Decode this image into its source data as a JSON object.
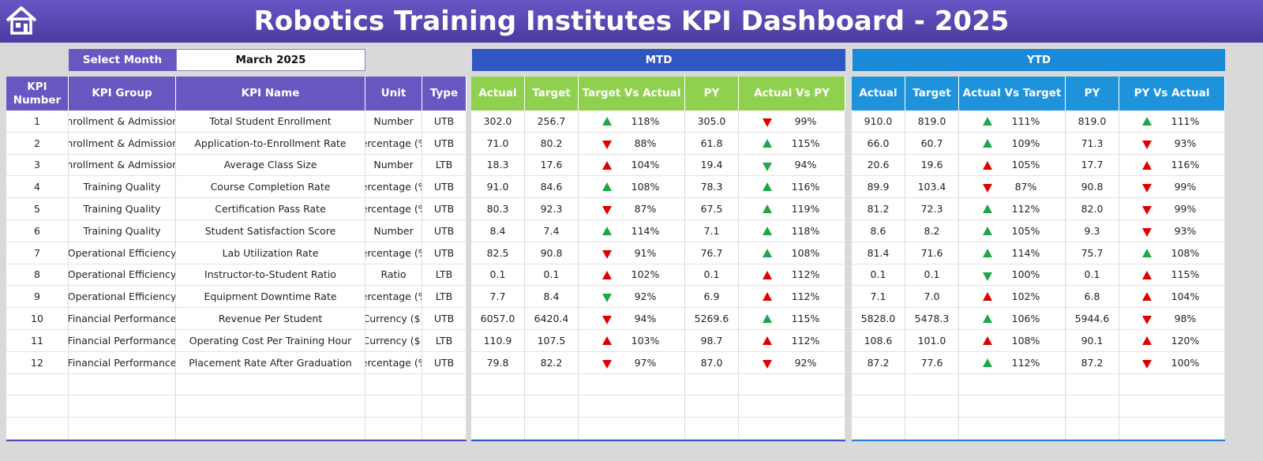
{
  "header": {
    "title": "Robotics Training Institutes KPI Dashboard - 2025"
  },
  "controls": {
    "select_month_label": "Select Month",
    "month": "March 2025",
    "mtd_label": "MTD",
    "ytd_label": "YTD"
  },
  "kpi_table": {
    "headers": [
      "KPI Number",
      "KPI Group",
      "KPI Name",
      "Unit",
      "Type"
    ],
    "rows": [
      [
        "1",
        "Enrollment & Admissions",
        "Total Student Enrollment",
        "Number",
        "UTB"
      ],
      [
        "2",
        "Enrollment & Admissions",
        "Application-to-Enrollment Rate",
        "Percentage (%)",
        "UTB"
      ],
      [
        "3",
        "Enrollment & Admissions",
        "Average Class Size",
        "Number",
        "LTB"
      ],
      [
        "4",
        "Training Quality",
        "Course Completion Rate",
        "Percentage (%)",
        "UTB"
      ],
      [
        "5",
        "Training Quality",
        "Certification Pass Rate",
        "Percentage (%)",
        "UTB"
      ],
      [
        "6",
        "Training Quality",
        "Student Satisfaction Score",
        "Number",
        "UTB"
      ],
      [
        "7",
        "Operational Efficiency",
        "Lab Utilization Rate",
        "Percentage (%)",
        "UTB"
      ],
      [
        "8",
        "Operational Efficiency",
        "Instructor-to-Student Ratio",
        "Ratio",
        "LTB"
      ],
      [
        "9",
        "Operational Efficiency",
        "Equipment Downtime Rate",
        "Percentage (%)",
        "LTB"
      ],
      [
        "10",
        "Financial Performance",
        "Revenue Per Student",
        "Currency ($)",
        "UTB"
      ],
      [
        "11",
        "Financial Performance",
        "Operating Cost Per Training Hour",
        "Currency ($)",
        "LTB"
      ],
      [
        "12",
        "Financial Performance",
        "Placement Rate After Graduation",
        "Percentage (%)",
        "UTB"
      ]
    ]
  },
  "mtd_table": {
    "headers": [
      "Actual",
      "Target",
      "Target Vs Actual",
      "PY",
      "Actual Vs PY"
    ],
    "rows": [
      [
        "302.0",
        "256.7",
        "118%",
        "305.0",
        "99%"
      ],
      [
        "71.0",
        "80.2",
        "88%",
        "61.8",
        "115%"
      ],
      [
        "18.3",
        "17.6",
        "104%",
        "19.4",
        "94%"
      ],
      [
        "91.0",
        "84.6",
        "108%",
        "78.3",
        "116%"
      ],
      [
        "80.3",
        "92.3",
        "87%",
        "67.5",
        "119%"
      ],
      [
        "8.4",
        "7.4",
        "114%",
        "7.1",
        "118%"
      ],
      [
        "82.5",
        "90.8",
        "91%",
        "76.7",
        "108%"
      ],
      [
        "0.1",
        "0.1",
        "102%",
        "0.1",
        "112%"
      ],
      [
        "7.7",
        "8.4",
        "92%",
        "6.9",
        "112%"
      ],
      [
        "6057.0",
        "6420.4",
        "94%",
        "5269.6",
        "115%"
      ],
      [
        "110.9",
        "107.5",
        "103%",
        "98.7",
        "112%"
      ],
      [
        "79.8",
        "82.2",
        "97%",
        "87.0",
        "92%"
      ]
    ]
  },
  "ytd_table": {
    "headers": [
      "Actual",
      "Target",
      "Actual Vs Target",
      "PY",
      "PY Vs Actual"
    ],
    "rows": [
      [
        "910.0",
        "819.0",
        "111%",
        "819.0",
        "111%"
      ],
      [
        "66.0",
        "60.7",
        "109%",
        "71.3",
        "93%"
      ],
      [
        "20.6",
        "19.6",
        "105%",
        "17.7",
        "116%"
      ],
      [
        "89.9",
        "103.4",
        "87%",
        "90.8",
        "99%"
      ],
      [
        "81.2",
        "72.3",
        "112%",
        "82.0",
        "99%"
      ],
      [
        "8.6",
        "8.2",
        "105%",
        "9.3",
        "93%"
      ],
      [
        "81.4",
        "71.6",
        "114%",
        "75.7",
        "108%"
      ],
      [
        "0.1",
        "0.1",
        "100%",
        "0.1",
        "115%"
      ],
      [
        "7.1",
        "7.0",
        "102%",
        "6.8",
        "104%"
      ],
      [
        "5828.0",
        "5478.3",
        "106%",
        "5944.6",
        "98%"
      ],
      [
        "108.6",
        "101.0",
        "108%",
        "90.1",
        "120%"
      ],
      [
        "87.2",
        "77.6",
        "112%",
        "87.2",
        "100%"
      ]
    ]
  }
}
